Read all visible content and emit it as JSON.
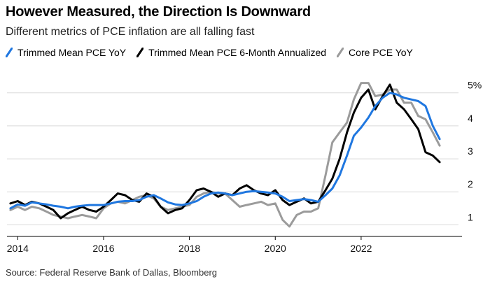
{
  "title": "However Measured, the Direction Is Downward",
  "subtitle": "Different metrics of PCE inflation are all falling fast",
  "source": "Source: Federal Reserve Bank of Dallas, Bloomberg",
  "chart_data": {
    "type": "line",
    "title": "However Measured, the Direction Is Downward",
    "subtitle": "Different metrics of PCE inflation are all falling fast",
    "xlabel": "",
    "ylabel": "",
    "x_tick_labels": [
      "2014",
      "2016",
      "2018",
      "2020",
      "2022"
    ],
    "x_tick_values": [
      2014,
      2016,
      2018,
      2020,
      2022
    ],
    "y_tick_labels": [
      "1",
      "2",
      "3",
      "4",
      "5%"
    ],
    "y_tick_values": [
      1,
      2,
      3,
      4,
      5
    ],
    "xlim": [
      2013.75,
      2024.35
    ],
    "ylim": [
      0.5,
      5.8
    ],
    "grid": true,
    "legend_position": "top",
    "y_axis_side": "right",
    "series": [
      {
        "name": "Trimmed Mean PCE YoY",
        "color": "#1f77e0",
        "x": [
          2013.83,
          2014.0,
          2014.17,
          2014.33,
          2014.5,
          2014.67,
          2014.83,
          2015.0,
          2015.17,
          2015.33,
          2015.5,
          2015.67,
          2015.83,
          2016.0,
          2016.17,
          2016.33,
          2016.5,
          2016.67,
          2016.83,
          2017.0,
          2017.17,
          2017.33,
          2017.5,
          2017.67,
          2017.83,
          2018.0,
          2018.17,
          2018.33,
          2018.5,
          2018.67,
          2018.83,
          2019.0,
          2019.17,
          2019.33,
          2019.5,
          2019.67,
          2019.83,
          2020.0,
          2020.17,
          2020.33,
          2020.5,
          2020.67,
          2020.83,
          2021.0,
          2021.17,
          2021.33,
          2021.5,
          2021.67,
          2021.83,
          2022.0,
          2022.17,
          2022.33,
          2022.5,
          2022.67,
          2022.83,
          2023.0,
          2023.17,
          2023.33,
          2023.5,
          2023.67,
          2023.83
        ],
        "y": [
          1.5,
          1.62,
          1.58,
          1.68,
          1.65,
          1.62,
          1.58,
          1.55,
          1.5,
          1.55,
          1.58,
          1.6,
          1.6,
          1.6,
          1.65,
          1.7,
          1.72,
          1.72,
          1.75,
          1.85,
          1.9,
          1.8,
          1.68,
          1.62,
          1.6,
          1.65,
          1.72,
          1.85,
          1.95,
          1.98,
          1.95,
          1.9,
          1.95,
          2.0,
          2.02,
          2.0,
          1.98,
          1.95,
          1.85,
          1.72,
          1.75,
          1.78,
          1.75,
          1.7,
          1.9,
          2.1,
          2.5,
          3.1,
          3.7,
          3.95,
          4.25,
          4.6,
          4.85,
          5.0,
          4.95,
          4.85,
          4.8,
          4.75,
          4.6,
          4.0,
          3.6
        ]
      },
      {
        "name": "Trimmed Mean PCE 6-Month Annualized",
        "color": "#000000",
        "x": [
          2013.83,
          2014.0,
          2014.17,
          2014.33,
          2014.5,
          2014.67,
          2014.83,
          2015.0,
          2015.17,
          2015.33,
          2015.5,
          2015.67,
          2015.83,
          2016.0,
          2016.17,
          2016.33,
          2016.5,
          2016.67,
          2016.83,
          2017.0,
          2017.17,
          2017.33,
          2017.5,
          2017.67,
          2017.83,
          2018.0,
          2018.17,
          2018.33,
          2018.5,
          2018.67,
          2018.83,
          2019.0,
          2019.17,
          2019.33,
          2019.5,
          2019.67,
          2019.83,
          2020.0,
          2020.17,
          2020.33,
          2020.5,
          2020.67,
          2020.83,
          2021.0,
          2021.17,
          2021.33,
          2021.5,
          2021.67,
          2021.83,
          2022.0,
          2022.17,
          2022.33,
          2022.5,
          2022.67,
          2022.83,
          2023.0,
          2023.17,
          2023.33,
          2023.5,
          2023.67,
          2023.83
        ],
        "y": [
          1.65,
          1.72,
          1.6,
          1.7,
          1.65,
          1.55,
          1.45,
          1.2,
          1.35,
          1.45,
          1.55,
          1.45,
          1.4,
          1.55,
          1.75,
          1.95,
          1.9,
          1.75,
          1.7,
          1.95,
          1.85,
          1.55,
          1.35,
          1.45,
          1.5,
          1.75,
          2.05,
          2.1,
          2.0,
          1.85,
          1.95,
          1.9,
          2.1,
          2.2,
          2.05,
          1.95,
          1.9,
          2.05,
          1.75,
          1.6,
          1.7,
          1.8,
          1.65,
          1.7,
          2.05,
          2.4,
          3.0,
          3.8,
          4.4,
          4.85,
          5.1,
          4.5,
          4.9,
          5.25,
          4.7,
          4.5,
          4.2,
          3.9,
          3.2,
          3.1,
          2.9
        ]
      },
      {
        "name": "Core PCE YoY",
        "color": "#9b9b9b",
        "x": [
          2013.83,
          2014.0,
          2014.17,
          2014.33,
          2014.5,
          2014.67,
          2014.83,
          2015.0,
          2015.17,
          2015.33,
          2015.5,
          2015.67,
          2015.83,
          2016.0,
          2016.17,
          2016.33,
          2016.5,
          2016.67,
          2016.83,
          2017.0,
          2017.17,
          2017.33,
          2017.5,
          2017.67,
          2017.83,
          2018.0,
          2018.17,
          2018.33,
          2018.5,
          2018.67,
          2018.83,
          2019.0,
          2019.17,
          2019.33,
          2019.5,
          2019.67,
          2019.83,
          2020.0,
          2020.17,
          2020.33,
          2020.5,
          2020.67,
          2020.83,
          2021.0,
          2021.17,
          2021.33,
          2021.5,
          2021.67,
          2021.83,
          2022.0,
          2022.17,
          2022.33,
          2022.5,
          2022.67,
          2022.83,
          2023.0,
          2023.17,
          2023.33,
          2023.5,
          2023.67,
          2023.83
        ],
        "y": [
          1.45,
          1.55,
          1.45,
          1.55,
          1.5,
          1.4,
          1.3,
          1.25,
          1.2,
          1.25,
          1.3,
          1.25,
          1.2,
          1.5,
          1.65,
          1.7,
          1.65,
          1.75,
          1.85,
          1.9,
          1.8,
          1.55,
          1.45,
          1.5,
          1.55,
          1.6,
          1.85,
          1.95,
          2.0,
          1.95,
          1.95,
          1.75,
          1.55,
          1.6,
          1.65,
          1.7,
          1.6,
          1.65,
          1.15,
          0.95,
          1.3,
          1.4,
          1.4,
          1.5,
          2.5,
          3.5,
          3.8,
          4.1,
          4.8,
          5.3,
          5.3,
          4.9,
          4.95,
          5.1,
          5.1,
          4.7,
          4.7,
          4.3,
          4.2,
          3.8,
          3.4
        ]
      }
    ]
  }
}
